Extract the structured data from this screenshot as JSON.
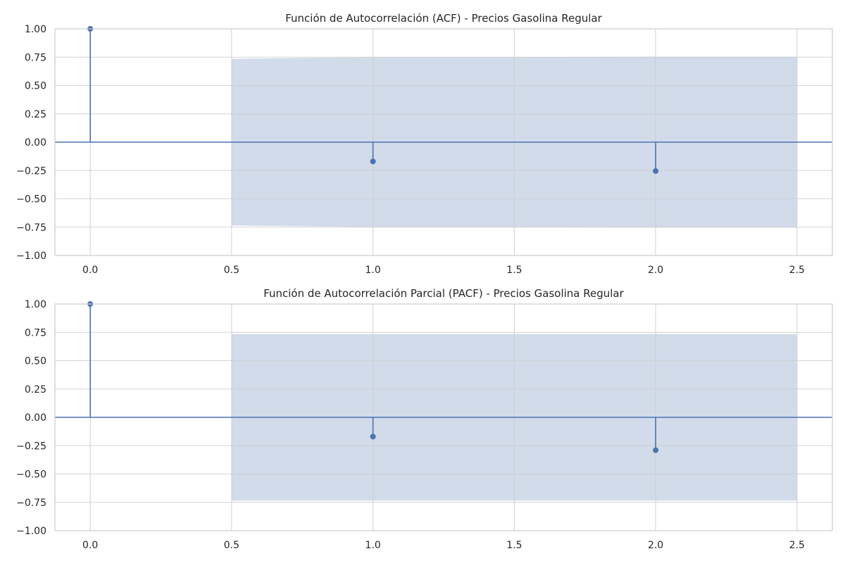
{
  "chart_data": [
    {
      "type": "stem",
      "title": "Función de Autocorrelación (ACF) - Precios Gasolina Regular",
      "xlabel": "",
      "ylabel": "",
      "x": [
        0,
        1,
        2
      ],
      "values": [
        1.0,
        -0.17,
        -0.255
      ],
      "xlim": [
        -0.125,
        2.625
      ],
      "ylim": [
        -1.0,
        1.0
      ],
      "xticks": [
        "0.0",
        "0.5",
        "1.0",
        "1.5",
        "2.0",
        "2.5"
      ],
      "yticks": [
        "1.00",
        "0.75",
        "0.50",
        "0.25",
        "0.00",
        "−0.25",
        "−0.50",
        "−0.75",
        "−1.00"
      ],
      "confidence_band": {
        "x": [
          0.5,
          1.0,
          1.5,
          2.0,
          2.5
        ],
        "upper": [
          0.735,
          0.75,
          0.75,
          0.755,
          0.755
        ],
        "lower": [
          -0.735,
          -0.75,
          -0.75,
          -0.755,
          -0.755
        ]
      },
      "grid": true,
      "legend": "none"
    },
    {
      "type": "stem",
      "title": "Función de Autocorrelación Parcial (PACF) - Precios Gasolina Regular",
      "xlabel": "",
      "ylabel": "",
      "x": [
        0,
        1,
        2
      ],
      "values": [
        1.0,
        -0.17,
        -0.29
      ],
      "xlim": [
        -0.125,
        2.625
      ],
      "ylim": [
        -1.0,
        1.0
      ],
      "xticks": [
        "0.0",
        "0.5",
        "1.0",
        "1.5",
        "2.0",
        "2.5"
      ],
      "yticks": [
        "1.00",
        "0.75",
        "0.50",
        "0.25",
        "0.00",
        "−0.25",
        "−0.50",
        "−0.75",
        "−1.00"
      ],
      "confidence_band": {
        "x": [
          0.5,
          1.0,
          1.5,
          2.0,
          2.5
        ],
        "upper": [
          0.735,
          0.735,
          0.735,
          0.735,
          0.735
        ],
        "lower": [
          -0.735,
          -0.735,
          -0.735,
          -0.735,
          -0.735
        ]
      },
      "grid": true,
      "legend": "none"
    }
  ],
  "colors": {
    "stem": "#4c72b0",
    "band": "#d2dbea",
    "grid": "#cccccc",
    "text": "#262626"
  }
}
